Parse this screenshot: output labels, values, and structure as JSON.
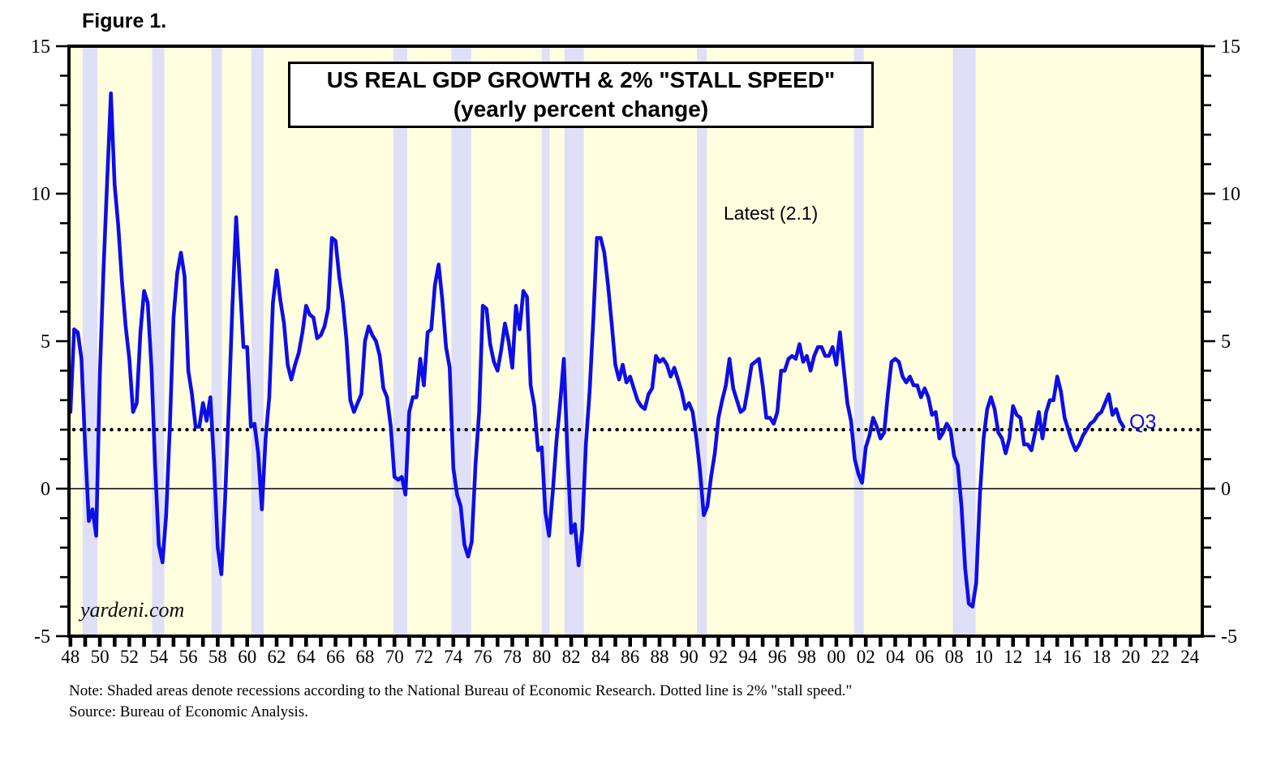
{
  "figure_label": "Figure 1.",
  "title": {
    "line1": "US REAL GDP GROWTH & 2% \"STALL SPEED\"",
    "line2": "(yearly percent change)"
  },
  "annotations": {
    "latest": "Latest (2.1)",
    "end_label": "Q3"
  },
  "watermark": "yardeni.com",
  "note": {
    "line1": "Note: Shaded areas denote recessions according to the National Bureau of Economic Research. Dotted line is 2% \"stall speed.\"",
    "line2": "Source: Bureau of Economic Analysis."
  },
  "colors": {
    "line": "#0E0EE6",
    "plot_bg": "#FFFFE0",
    "recession_band": "#DFDFF7",
    "stall_dotted": "#000000",
    "axis": "#000000"
  },
  "chart_data": {
    "type": "line",
    "title": "US REAL GDP GROWTH & 2% \"STALL SPEED\" (yearly percent change)",
    "xlabel": "",
    "ylabel": "yearly percent change",
    "x_range": [
      1947.9,
      2024.85
    ],
    "y_range": [
      -5,
      15
    ],
    "y_tick_values": [
      -5,
      0,
      5,
      10,
      15
    ],
    "y_tick_labels": [
      "-5",
      "0",
      "5",
      "10",
      "15"
    ],
    "y_minor_step": 1,
    "x_tick_start": 1948,
    "x_tick_end": 2024,
    "x_minor_step": 1,
    "x_tick_label_years": [
      1948,
      1950,
      1952,
      1954,
      1956,
      1958,
      1960,
      1962,
      1964,
      1966,
      1968,
      1970,
      1972,
      1974,
      1976,
      1978,
      1980,
      1982,
      1984,
      1986,
      1988,
      1990,
      1992,
      1994,
      1996,
      1998,
      2000,
      2002,
      2004,
      2006,
      2008,
      2010,
      2012,
      2014,
      2016,
      2018,
      2020,
      2022,
      2024
    ],
    "x_tick_labels": [
      "48",
      "50",
      "52",
      "54",
      "56",
      "58",
      "60",
      "62",
      "64",
      "66",
      "68",
      "70",
      "72",
      "74",
      "76",
      "78",
      "80",
      "82",
      "84",
      "86",
      "88",
      "90",
      "92",
      "94",
      "96",
      "98",
      "00",
      "02",
      "04",
      "06",
      "08",
      "10",
      "12",
      "14",
      "16",
      "18",
      "20",
      "22",
      "24"
    ],
    "stall_speed_value": 2,
    "zero_line": 0,
    "grid": false,
    "legend": "none",
    "recessions": [
      [
        1948.83,
        1949.83
      ],
      [
        1953.54,
        1954.37
      ],
      [
        1957.58,
        1958.29
      ],
      [
        1960.29,
        1961.12
      ],
      [
        1969.92,
        1970.87
      ],
      [
        1973.87,
        1975.21
      ],
      [
        1980.0,
        1980.54
      ],
      [
        1981.54,
        1982.87
      ],
      [
        1990.54,
        1991.21
      ],
      [
        2001.21,
        2001.87
      ],
      [
        2007.92,
        2009.46
      ]
    ],
    "series": {
      "name": "US real GDP growth, yearly percent change (quarterly)",
      "x_start": 1948.0,
      "x_step": 0.25,
      "latest_value": 2.1,
      "latest_quarter": "Q3",
      "values": [
        2.6,
        5.4,
        5.3,
        4.4,
        1.4,
        -1.1,
        -0.7,
        -1.6,
        3.9,
        7.5,
        10.5,
        13.4,
        10.3,
        8.9,
        7.0,
        5.5,
        4.4,
        2.6,
        2.9,
        5.3,
        6.7,
        6.3,
        4.1,
        0.8,
        -1.9,
        -2.5,
        -0.9,
        2.1,
        5.8,
        7.3,
        8.0,
        7.2,
        4.0,
        3.2,
        2.1,
        2.1,
        2.9,
        2.3,
        3.1,
        0.9,
        -2.0,
        -2.9,
        -0.4,
        2.8,
        6.2,
        9.2,
        7.0,
        4.8,
        4.8,
        2.1,
        2.2,
        1.2,
        -0.7,
        1.7,
        3.1,
        6.3,
        7.4,
        6.4,
        5.6,
        4.2,
        3.7,
        4.2,
        4.6,
        5.3,
        6.2,
        5.9,
        5.8,
        5.1,
        5.2,
        5.5,
        6.1,
        8.5,
        8.4,
        7.2,
        6.3,
        5.0,
        3.0,
        2.6,
        2.9,
        3.2,
        5.0,
        5.5,
        5.2,
        5.0,
        4.5,
        3.4,
        3.1,
        2.1,
        0.4,
        0.3,
        0.4,
        -0.2,
        2.6,
        3.1,
        3.1,
        4.4,
        3.5,
        5.3,
        5.4,
        6.9,
        7.6,
        6.4,
        4.8,
        4.1,
        0.7,
        -0.2,
        -0.6,
        -1.9,
        -2.3,
        -1.8,
        0.8,
        2.6,
        6.2,
        6.1,
        4.9,
        4.3,
        4.0,
        4.7,
        5.6,
        5.0,
        4.1,
        6.2,
        5.4,
        6.7,
        6.5,
        3.5,
        2.8,
        1.3,
        1.4,
        -0.8,
        -1.6,
        -0.1,
        1.6,
        2.9,
        4.4,
        1.2,
        -1.5,
        -1.2,
        -2.6,
        -1.4,
        1.5,
        3.3,
        5.7,
        8.5,
        8.5,
        8.0,
        6.9,
        5.6,
        4.2,
        3.7,
        4.2,
        3.6,
        3.8,
        3.4,
        3.0,
        2.8,
        2.7,
        3.2,
        3.4,
        4.5,
        4.3,
        4.4,
        4.2,
        3.8,
        4.1,
        3.7,
        3.3,
        2.7,
        2.9,
        2.6,
        1.7,
        0.6,
        -0.9,
        -0.6,
        0.4,
        1.2,
        2.4,
        3.0,
        3.5,
        4.4,
        3.4,
        3.0,
        2.6,
        2.7,
        3.4,
        4.2,
        4.3,
        4.4,
        3.5,
        2.4,
        2.4,
        2.2,
        2.6,
        4.0,
        4.0,
        4.4,
        4.5,
        4.4,
        4.9,
        4.3,
        4.5,
        4.0,
        4.5,
        4.8,
        4.8,
        4.5,
        4.5,
        4.8,
        4.2,
        5.3,
        4.1,
        2.9,
        2.3,
        1.0,
        0.5,
        0.2,
        1.4,
        1.8,
        2.4,
        2.1,
        1.7,
        1.9,
        3.2,
        4.3,
        4.4,
        4.3,
        3.8,
        3.6,
        3.8,
        3.5,
        3.5,
        3.1,
        3.4,
        3.1,
        2.5,
        2.6,
        1.7,
        1.9,
        2.2,
        2.0,
        1.1,
        0.8,
        -0.6,
        -2.7,
        -3.9,
        -4.0,
        -3.2,
        -0.2,
        1.7,
        2.7,
        3.1,
        2.7,
        1.9,
        1.7,
        1.2,
        1.7,
        2.8,
        2.5,
        2.4,
        1.5,
        1.5,
        1.3,
        1.9,
        2.6,
        1.7,
        2.6,
        3.0,
        3.0,
        3.8,
        3.3,
        2.4,
        2.0,
        1.6,
        1.3,
        1.5,
        1.8,
        2.0,
        2.2,
        2.3,
        2.5,
        2.6,
        2.9,
        3.2,
        2.5,
        2.7,
        2.3,
        2.1
      ]
    }
  }
}
